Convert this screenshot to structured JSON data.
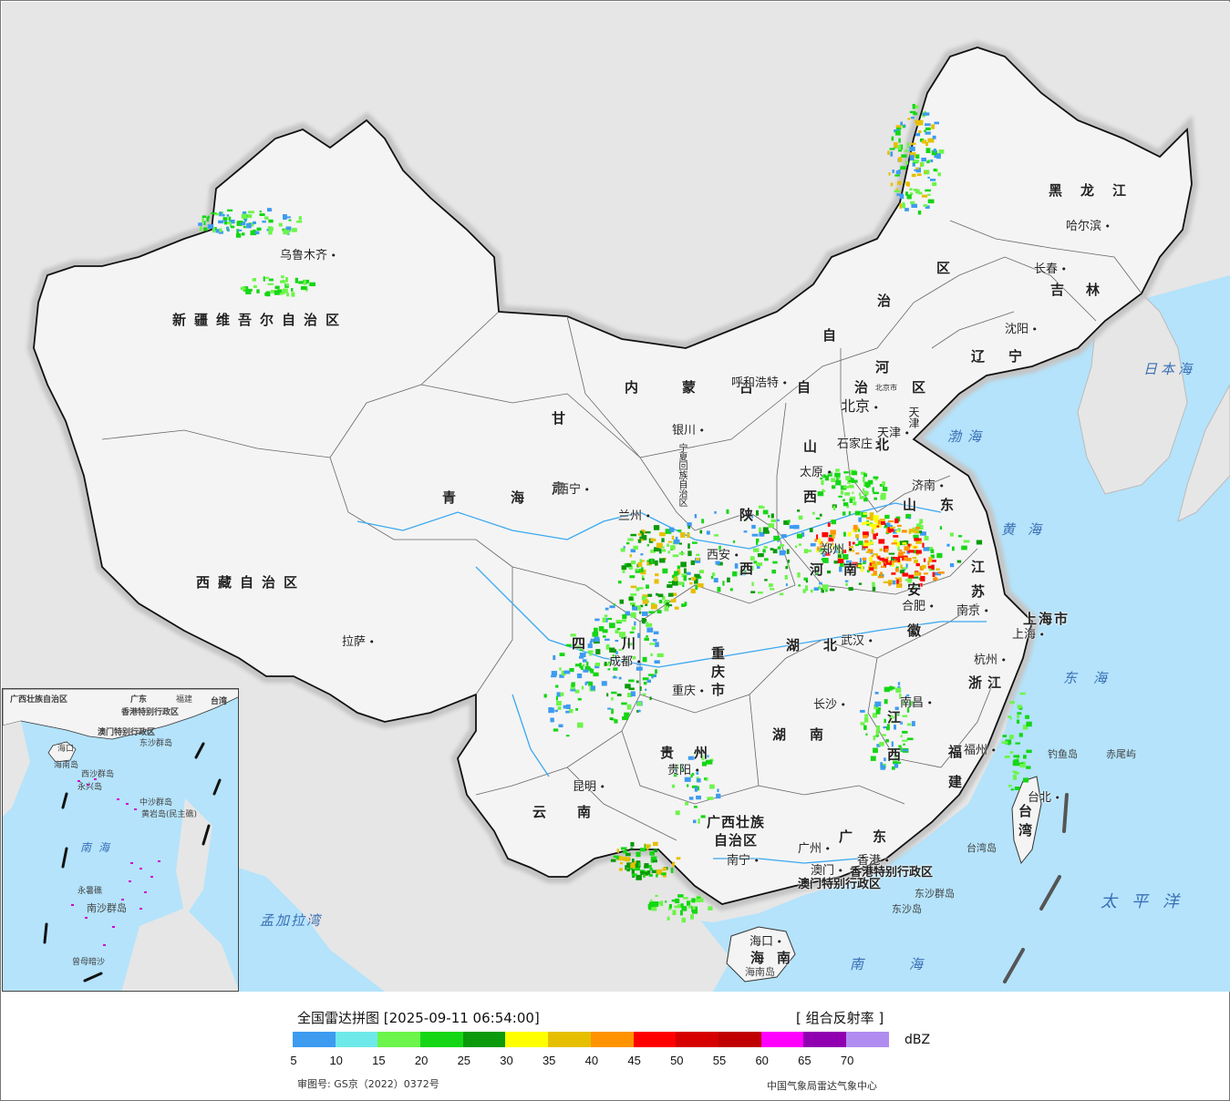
{
  "title": "全国雷达拼图 [2025-09-11 06:54:00]",
  "product": "[ 组合反射率 ]",
  "unit": "dBZ",
  "legend": {
    "colors": [
      "#3d9bf0",
      "#6ee9ea",
      "#6cf54a",
      "#15d615",
      "#0b9a0b",
      "#ffff00",
      "#e6c000",
      "#ff9400",
      "#ff0000",
      "#d60000",
      "#c00000",
      "#ff00ff",
      "#9000b0",
      "#b08cf0"
    ],
    "ticks": [
      "5",
      "10",
      "15",
      "20",
      "25",
      "30",
      "35",
      "40",
      "45",
      "50",
      "55",
      "60",
      "65",
      "70"
    ]
  },
  "approval": "审图号: GS京（2022）0372号",
  "agency": "中国气象局雷达气象中心",
  "provinces": [
    {
      "name": "新疆维吾尔自治区",
      "key": "xinjiang"
    },
    {
      "name": "西藏自治区",
      "key": "xizang"
    },
    {
      "name": "青海",
      "key": "qinghai"
    },
    {
      "name": "甘肃",
      "key": "gansu"
    },
    {
      "name": "内蒙古自治区",
      "key": "neimenggu"
    },
    {
      "name": "黑龙江",
      "key": "heilongjiang"
    },
    {
      "name": "吉林",
      "key": "jilin"
    },
    {
      "name": "辽宁",
      "key": "liaoning"
    },
    {
      "name": "河北",
      "key": "hebei"
    },
    {
      "name": "山西",
      "key": "shanxi"
    },
    {
      "name": "山东",
      "key": "shandong"
    },
    {
      "name": "陕西",
      "key": "shaanxi"
    },
    {
      "name": "河南",
      "key": "henan"
    },
    {
      "name": "江苏",
      "key": "jiangsu"
    },
    {
      "name": "安徽",
      "key": "anhui"
    },
    {
      "name": "上海市",
      "key": "shanghai"
    },
    {
      "name": "浙江",
      "key": "zhejiang"
    },
    {
      "name": "湖北",
      "key": "hubei"
    },
    {
      "name": "四川",
      "key": "sichuan"
    },
    {
      "name": "重庆市",
      "key": "chongqing"
    },
    {
      "name": "湖南",
      "key": "hunan"
    },
    {
      "name": "江西",
      "key": "jiangxi"
    },
    {
      "name": "福建",
      "key": "fujian"
    },
    {
      "name": "贵州",
      "key": "guizhou"
    },
    {
      "name": "云南",
      "key": "yunnan"
    },
    {
      "name": "广西壮族自治区",
      "key": "guangxi"
    },
    {
      "name": "广东",
      "key": "guangdong"
    },
    {
      "name": "台湾",
      "key": "taiwan"
    },
    {
      "name": "海南",
      "key": "hainan"
    },
    {
      "name": "宁夏回族自治区",
      "key": "ningxia"
    },
    {
      "name": "香港特别行政区",
      "key": "hongkong"
    },
    {
      "name": "澳门特别行政区",
      "key": "macau"
    },
    {
      "name": "天津",
      "key": "tianjin"
    },
    {
      "name": "北京市",
      "key": "beijing_label"
    }
  ],
  "cities": {
    "urumqi": "乌鲁木齐",
    "lhasa": "拉萨",
    "xining": "西宁",
    "lanzhou": "兰州",
    "yinchuan": "银川",
    "hohhot": "呼和浩特",
    "beijing": "北京",
    "tianjin": "天津",
    "shijiazhuang": "石家庄",
    "taiyuan": "太原",
    "jinan": "济南",
    "zhengzhou": "郑州",
    "xian": "西安",
    "hefei": "合肥",
    "nanjing": "南京",
    "shanghai": "上海",
    "hangzhou": "杭州",
    "wuhan": "武汉",
    "chengdu": "成都",
    "chongqing": "重庆",
    "changsha": "长沙",
    "nanchang": "南昌",
    "fuzhou": "福州",
    "guiyang": "贵阳",
    "kunming": "昆明",
    "nanning": "南宁",
    "guangzhou": "广州",
    "hongkong": "香港",
    "macau": "澳门",
    "haikou": "海口",
    "taipei": "台北",
    "harbin": "哈尔滨",
    "changchun": "长春",
    "shenyang": "沈阳"
  },
  "seas": {
    "bohai": "渤海",
    "huanghai": "黄海",
    "donghai": "东海",
    "nanhai": "南海",
    "taipingyang": "太平洋",
    "ribenhai": "日本海",
    "mengjialawan": "孟加拉湾"
  },
  "islands": {
    "diaoyu": "钓鱼岛",
    "chiwei": "赤尾屿",
    "dongsha": "东沙群岛",
    "dongsha2": "东沙岛",
    "hainandao": "海南岛",
    "taiwandao": "台湾岛"
  },
  "inset": {
    "sea": "南海",
    "labels": {
      "guangxi": "广西壮族自治区",
      "guangdong": "广东",
      "fujian": "福建",
      "taiwan": "台湾",
      "hk": "香港特别行政区",
      "macau": "澳门特别行政区",
      "dongsha": "东沙群岛",
      "haikou": "海口",
      "hainandao": "海南岛",
      "xisha": "西沙群岛",
      "yongxing": "永兴岛",
      "zhongsha": "中沙群岛",
      "huangyan": "黄岩岛(民主礁)",
      "yongshu": "永暑礁",
      "nansha": "南沙群岛",
      "zengmu": "曾母暗沙"
    }
  }
}
